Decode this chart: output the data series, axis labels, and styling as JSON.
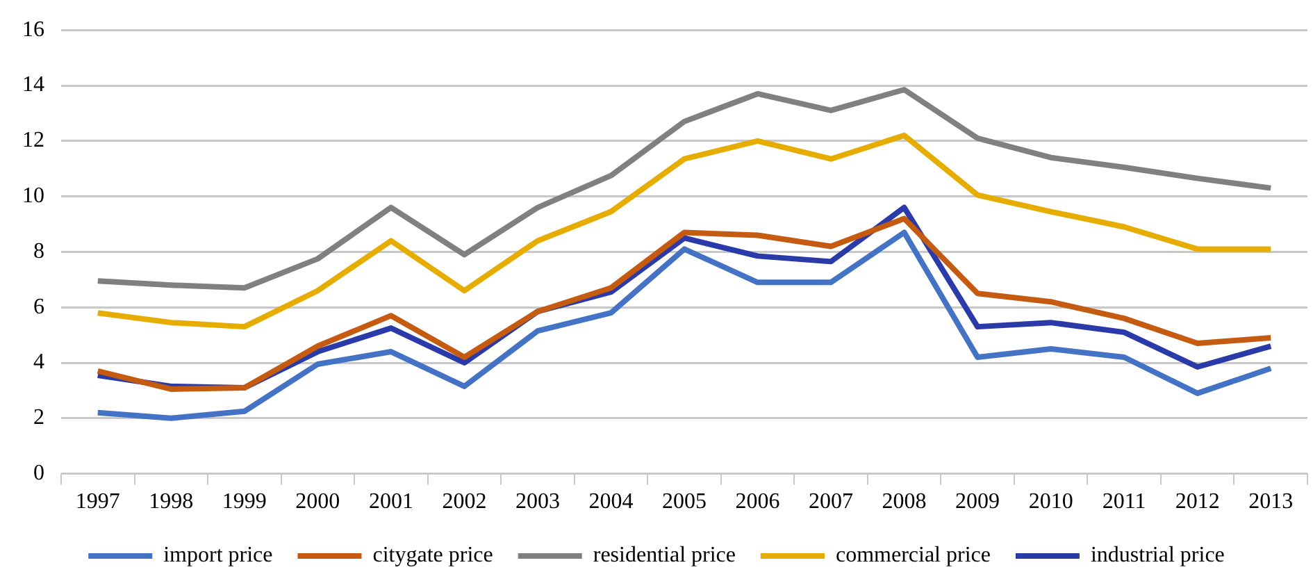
{
  "chart_data": {
    "type": "line",
    "categories": [
      "1997",
      "1998",
      "1999",
      "2000",
      "2001",
      "2002",
      "2003",
      "2004",
      "2005",
      "2006",
      "2007",
      "2008",
      "2009",
      "2010",
      "2011",
      "2012",
      "2013"
    ],
    "series": [
      {
        "name": "import price",
        "color": "#4472c4",
        "values": [
          2.2,
          2.0,
          2.25,
          3.95,
          4.4,
          3.15,
          5.15,
          5.8,
          8.1,
          6.9,
          6.9,
          8.7,
          4.2,
          4.5,
          4.2,
          2.9,
          3.8
        ]
      },
      {
        "name": "citygate price",
        "color": "#c55a11",
        "values": [
          3.7,
          3.05,
          3.1,
          4.6,
          5.7,
          4.2,
          5.85,
          6.7,
          8.7,
          8.6,
          8.2,
          9.2,
          6.5,
          6.2,
          5.6,
          4.7,
          4.9
        ]
      },
      {
        "name": "residential price",
        "color": "#808080",
        "values": [
          6.95,
          6.8,
          6.7,
          7.75,
          9.6,
          7.9,
          9.6,
          10.75,
          12.7,
          13.7,
          13.1,
          13.85,
          12.1,
          11.4,
          11.05,
          10.65,
          10.3
        ]
      },
      {
        "name": "commercial price",
        "color": "#e6ac00",
        "values": [
          5.8,
          5.45,
          5.3,
          6.6,
          8.4,
          6.6,
          8.4,
          9.45,
          11.35,
          12.0,
          11.35,
          12.2,
          10.05,
          9.45,
          8.9,
          8.1,
          8.1
        ]
      },
      {
        "name": "industrial price",
        "color": "#2a3aa8",
        "values": [
          3.55,
          3.15,
          3.1,
          4.4,
          5.25,
          4.0,
          5.85,
          6.55,
          8.5,
          7.85,
          7.65,
          9.6,
          5.3,
          5.45,
          5.1,
          3.85,
          4.6
        ]
      }
    ],
    "ylim": [
      0,
      16
    ],
    "yticks": [
      0,
      2,
      4,
      6,
      8,
      10,
      12,
      14,
      16
    ],
    "grid": "y",
    "legend": "bottom",
    "marker": "none",
    "line_style": "solid"
  }
}
